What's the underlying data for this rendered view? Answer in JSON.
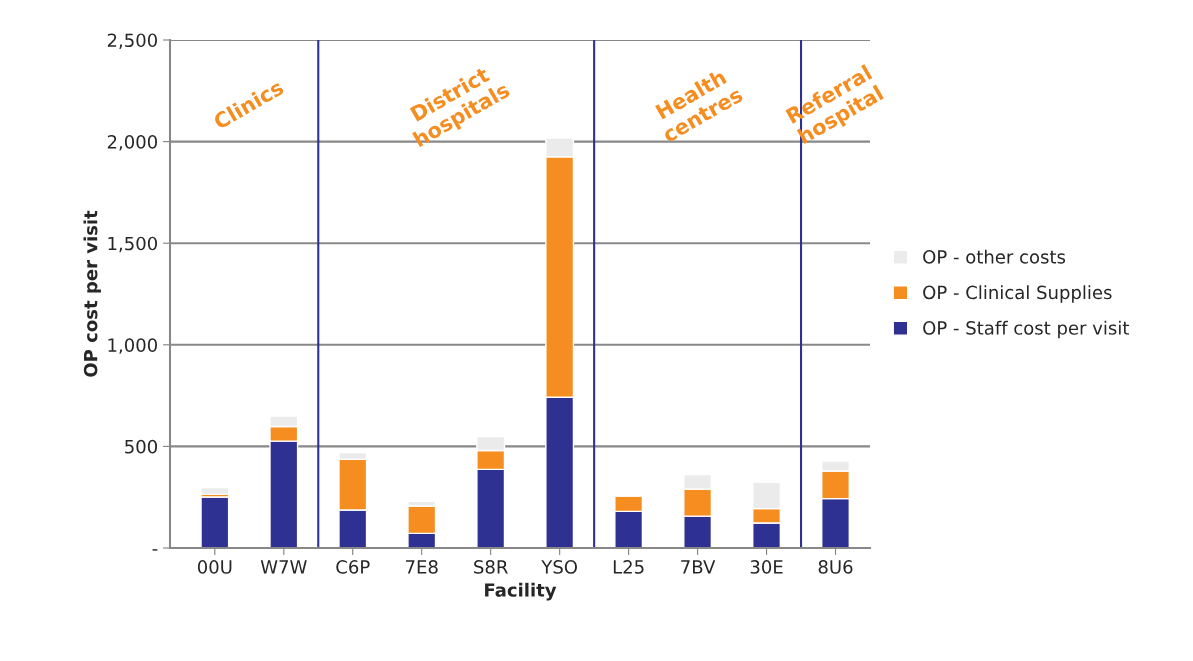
{
  "chart_data": {
    "type": "bar",
    "stacked": true,
    "xlabel": "Facility",
    "ylabel": "OP cost per visit",
    "categories": [
      "00U",
      "W7W",
      "C6P",
      "7E8",
      "S8R",
      "YSO",
      "L25",
      "7BV",
      "30E",
      "8U6"
    ],
    "series": [
      {
        "name": "OP - Staff cost per visit",
        "color": "#2e3192",
        "values": [
          251,
          526,
          187,
          72,
          387,
          742,
          180,
          157,
          123,
          243
        ]
      },
      {
        "name": "OP - Clinical Supplies",
        "color": "#f58d20",
        "values": [
          13,
          72,
          249,
          135,
          93,
          1183,
          76,
          133,
          71,
          136
        ]
      },
      {
        "name": "OP - other costs",
        "color": "#ebebeb",
        "values": [
          34,
          51,
          34,
          23,
          68,
          93,
          2,
          71,
          129,
          49
        ]
      }
    ],
    "ylim": [
      0,
      2500
    ],
    "yticks": [
      {
        "value": 0,
        "label": "-"
      },
      500,
      {
        "value": 1000,
        "label": "1,000"
      },
      {
        "value": 1500,
        "label": "1,500"
      },
      {
        "value": 2000,
        "label": "2,000"
      },
      {
        "value": 2500,
        "label": "2,500"
      }
    ],
    "grid": "y",
    "legend": "right",
    "annotations": [
      "Clinics",
      "District\nhospitals",
      "Health\ncentres",
      "Referral\nhospital"
    ]
  }
}
